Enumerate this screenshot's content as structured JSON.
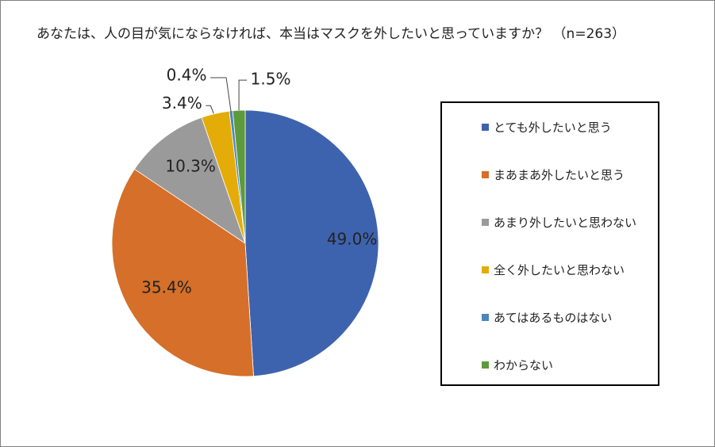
{
  "chart_data": {
    "type": "pie",
    "title": "あなたは、人の目が気にならなければ、本当はマスクを外したいと思っていますか？ （n=263）",
    "slices": [
      {
        "name": "とても外したいと思う",
        "value": 49.0,
        "label": "49.0%",
        "color": "#3E63AE"
      },
      {
        "name": "まあまあ外したいと思う",
        "value": 35.4,
        "label": "35.4%",
        "color": "#D56F29"
      },
      {
        "name": "あまり外したいと思わない",
        "value": 10.3,
        "label": "10.3%",
        "color": "#9A9A9A"
      },
      {
        "name": "全く外したいと思わない",
        "value": 3.4,
        "label": "3.4%",
        "color": "#E3AC09"
      },
      {
        "name": "あてはあるものはない",
        "value": 0.4,
        "label": "0.4%",
        "color": "#4A86BD"
      },
      {
        "name": "わからない",
        "value": 1.5,
        "label": "1.5%",
        "color": "#5E9A3C"
      }
    ],
    "legend_position": "right"
  }
}
